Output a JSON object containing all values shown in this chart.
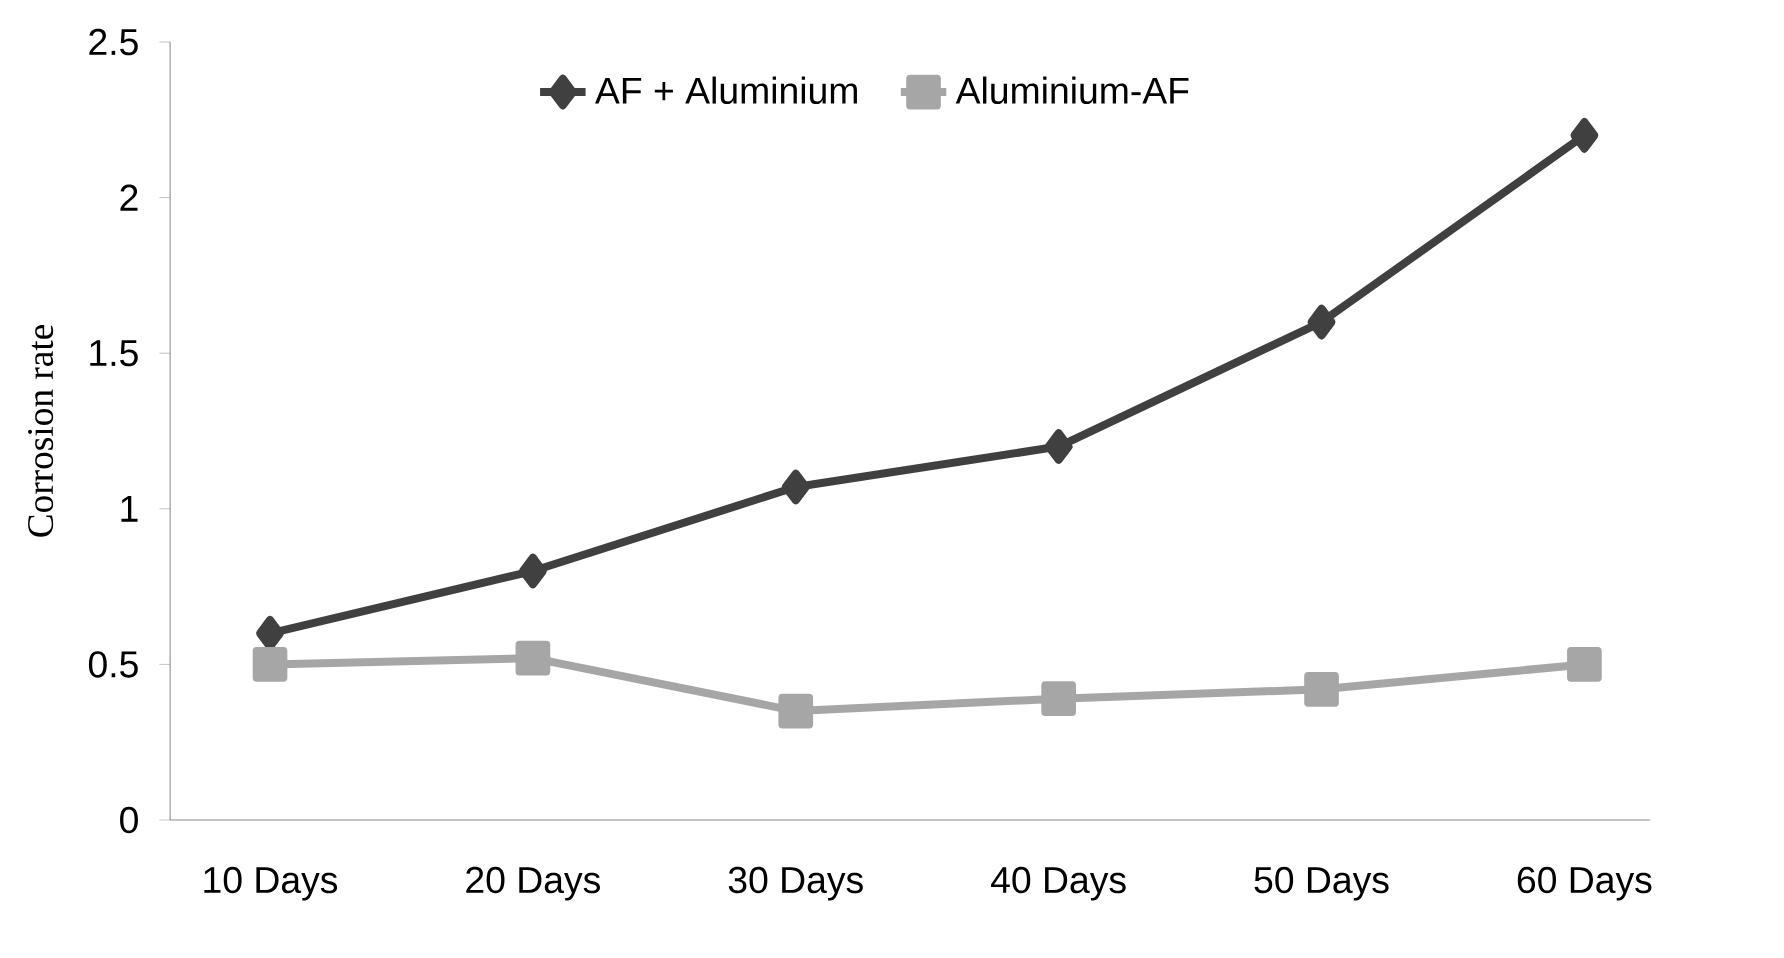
{
  "chart_data": {
    "type": "line",
    "ylabel": "Corrosion rate",
    "categories": [
      "10 Days",
      "20 Days",
      "30 Days",
      "40 Days",
      "50 Days",
      "60 Days"
    ],
    "series": [
      {
        "name": "AF + Aluminium",
        "color": "#404040",
        "marker": "diamond",
        "values": [
          0.6,
          0.8,
          1.07,
          1.2,
          1.6,
          2.2
        ]
      },
      {
        "name": "Aluminium-AF",
        "color": "#a6a6a6",
        "marker": "square",
        "values": [
          0.5,
          0.52,
          0.35,
          0.39,
          0.42,
          0.5
        ]
      }
    ],
    "ylim": [
      0,
      2.5
    ],
    "yticks": [
      0,
      0.5,
      1,
      1.5,
      2,
      2.5
    ],
    "grid": false,
    "legend": "top",
    "line_style": "solid"
  }
}
